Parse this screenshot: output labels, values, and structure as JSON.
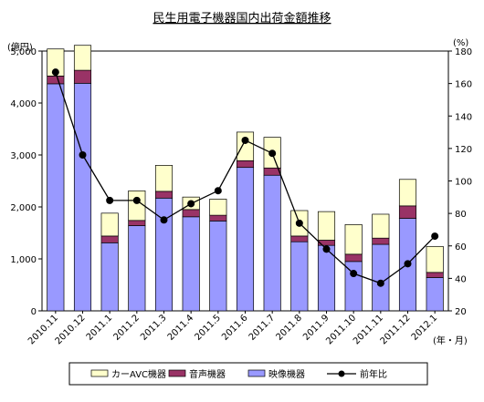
{
  "chart_data": {
    "type": "bar",
    "title": "民生用電子機器国内出荷金額推移",
    "left_axis_unit": "(億円)",
    "right_axis_unit": "(%)",
    "x_unit": "(年・月)",
    "categories": [
      "2010.11",
      "2010.12",
      "2011.1",
      "2011.2",
      "2011.3",
      "2011.4",
      "2011.5",
      "2011.6",
      "2011.7",
      "2011.8",
      "2011.9",
      "2011.10",
      "2011.11",
      "2011.12",
      "2012.1"
    ],
    "left_ylim": [
      0,
      5000
    ],
    "left_yticks": [
      "0",
      "1,000",
      "2,000",
      "3,000",
      "4,000",
      "5,000"
    ],
    "right_ylim": [
      20,
      180
    ],
    "right_yticks": [
      "20",
      "40",
      "60",
      "80",
      "100",
      "120",
      "140",
      "160",
      "180"
    ],
    "stacked_series": [
      {
        "name": "映像機器",
        "color": "#9999ff",
        "values": [
          4370,
          4380,
          1310,
          1640,
          2170,
          1810,
          1730,
          2760,
          2610,
          1330,
          1260,
          950,
          1280,
          1780,
          640
        ]
      },
      {
        "name": "音声機器",
        "color": "#993366",
        "values": [
          150,
          250,
          130,
          100,
          130,
          140,
          110,
          130,
          140,
          110,
          100,
          140,
          120,
          240,
          100
        ]
      },
      {
        "name": "カーAVC機器",
        "color": "#ffffcc",
        "values": [
          520,
          480,
          440,
          570,
          500,
          240,
          310,
          550,
          590,
          490,
          550,
          570,
          460,
          510,
          500
        ]
      }
    ],
    "line_series": {
      "name": "前年比",
      "color": "#000000",
      "values": [
        167,
        116,
        88,
        88,
        76,
        86,
        94,
        125,
        117,
        74,
        58,
        43,
        37,
        49,
        66
      ]
    },
    "legend_position": "bottom",
    "grid": false
  }
}
